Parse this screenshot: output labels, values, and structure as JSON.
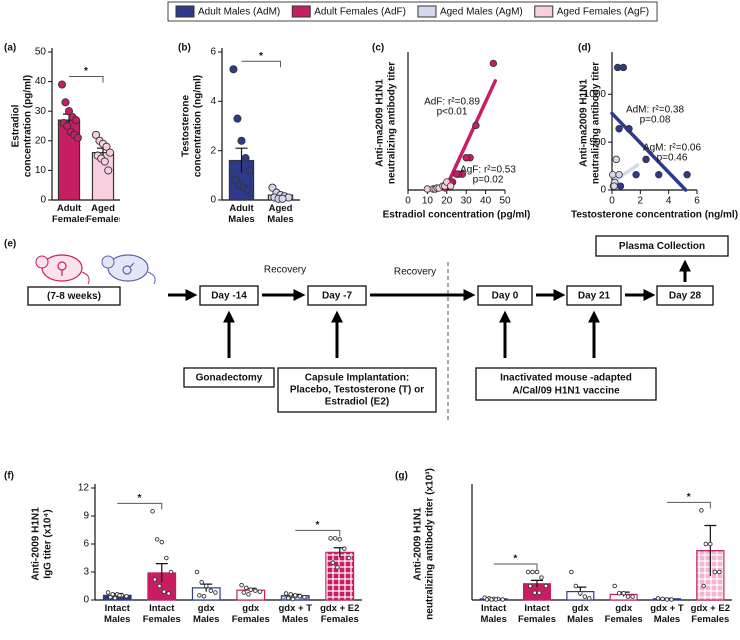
{
  "legend": [
    {
      "name": "Adult Males (AdM)",
      "color": "#2d3a8c"
    },
    {
      "name": "Adult Females (AdF)",
      "color": "#c71e63"
    },
    {
      "name": "Aged Males (AgM)",
      "color": "#d6d8f0"
    },
    {
      "name": "Aged Females (AgF)",
      "color": "#f9cfe0"
    }
  ],
  "chart_data": [
    {
      "type": "bar",
      "panel": "(a)",
      "ylabel": [
        "Estradiol",
        "concentration (pg/ml)"
      ],
      "categories": [
        "Adult Females",
        "Aged Females"
      ],
      "values": [
        27,
        16
      ],
      "errors": [
        2,
        1.5
      ],
      "colors": [
        "#c71e63",
        "#f9cfe0"
      ],
      "edgecolors": [
        "#333333",
        "#333333"
      ],
      "hatches": [
        null,
        null
      ],
      "point_colors": [
        "#c71e63",
        "#f9cfe0"
      ],
      "points": [
        [
          39,
          33,
          30,
          28,
          27,
          26,
          25,
          23,
          22,
          21
        ],
        [
          22,
          20,
          19,
          18,
          16,
          15,
          14,
          13,
          10
        ]
      ],
      "significance": [
        {
          "from": "Adult Females",
          "to": "Aged Females",
          "label": "*"
        }
      ],
      "ylim": [
        0,
        50
      ],
      "yticks": [
        0,
        10,
        20,
        30,
        40,
        50
      ]
    },
    {
      "type": "bar",
      "panel": "(b)",
      "ylabel": [
        "Testosterone",
        "concentration (ng/ml)"
      ],
      "categories": [
        "Adult Males",
        "Aged Males"
      ],
      "values": [
        1.6,
        0.2
      ],
      "errors": [
        0.5,
        0.05
      ],
      "colors": [
        "#2d3a8c",
        "#d6d8f0"
      ],
      "edgecolors": [
        "#333333",
        "#333333"
      ],
      "hatches": [
        null,
        null
      ],
      "point_colors": [
        "#2d3a8c",
        "#d6d8f0"
      ],
      "points": [
        [
          5.3,
          3.3,
          2.4,
          1.7,
          1.2,
          0.8,
          0.6,
          0.5,
          0.4
        ],
        [
          0.5,
          0.3,
          0.2,
          0.15,
          0.1,
          0.1,
          0.05,
          0.05
        ]
      ],
      "significance": [
        {
          "from": "Adult Males",
          "to": "Aged Males",
          "label": "*"
        }
      ],
      "ylim": [
        0,
        6
      ],
      "yticks": [
        0,
        2,
        4,
        6
      ]
    },
    {
      "type": "scatter",
      "panel": "(c)",
      "ylabel": [
        "Anti-ma2009 H1N1",
        "neutralizing antibody titer"
      ],
      "xlabel": "Estradiol concentration (pg/ml)",
      "series": [
        {
          "name": "AdF",
          "color": "#c71e63",
          "x": [
            44,
            35,
            32,
            30,
            28,
            26,
            25,
            23,
            22,
            21
          ],
          "y": [
            5100,
            2600,
            1300,
            1300,
            640,
            640,
            640,
            320,
            320,
            160
          ]
        },
        {
          "name": "AgF",
          "color": "#f9cfe0",
          "x": [
            10,
            13,
            14,
            15,
            16,
            18,
            19,
            20,
            22
          ],
          "y": [
            40,
            40,
            40,
            80,
            80,
            160,
            160,
            320,
            160
          ]
        }
      ],
      "fits": [
        {
          "color": "#c71e63",
          "x": [
            19,
            45
          ],
          "y": [
            0,
            4400
          ]
        },
        {
          "color": "#f9cfe0",
          "x": [
            9,
            23
          ],
          "y": [
            0,
            260
          ]
        }
      ],
      "annotations": [
        [
          "AdF: r²=0.89",
          "p<0.01"
        ],
        [
          "AgF: r²=0.53",
          "p=0.02"
        ]
      ],
      "xlim": [
        0,
        50
      ],
      "xticks": [
        0,
        10,
        20,
        30,
        40,
        50
      ],
      "ylim": [
        0,
        5400
      ]
    },
    {
      "type": "scatter",
      "panel": "(d)",
      "ylabel": [
        "Anti-ma2009 H1N1",
        "neutralizing antibody titer"
      ],
      "xlabel": "Testosterone concentration (ng/ml)",
      "series": [
        {
          "name": "AdM",
          "color": "#2d3a8c",
          "x": [
            0.4,
            0.8,
            0.5,
            1.2,
            2.4,
            1.7,
            3.3,
            5.3,
            0.6
          ],
          "y": [
            1280,
            1280,
            640,
            640,
            320,
            160,
            160,
            160,
            40
          ]
        },
        {
          "name": "AgM",
          "color": "#d6d8f0",
          "x": [
            0.1,
            0.2,
            0.3,
            0.05,
            0.15,
            0.5
          ],
          "y": [
            40,
            80,
            320,
            160,
            40,
            160
          ]
        }
      ],
      "fits": [
        {
          "color": "#2d3a8c",
          "x": [
            0,
            5.2
          ],
          "y": [
            800,
            0
          ]
        },
        {
          "color": "#d6d8f0",
          "x": [
            0,
            1.8
          ],
          "y": [
            80,
            260
          ]
        }
      ],
      "annotations": [
        [
          "AdM: r²=0.38",
          "p=0.08"
        ],
        [
          "AgM: r²=0.06",
          "p=0.46"
        ]
      ],
      "xlim": [
        0,
        6
      ],
      "xticks": [
        0,
        2,
        4,
        6
      ],
      "ylim": [
        0,
        1400
      ],
      "yticks": [
        0,
        500,
        1000
      ]
    },
    {
      "type": "bar",
      "panel": "(f)",
      "ylabel": [
        "Anti-2009 H1N1",
        "IgG titer (x10⁴)"
      ],
      "categories": [
        "Intact Males",
        "Intact Females",
        "gdx Males",
        "gdx Females",
        "gdx + T Males",
        "gdx + E2 Females"
      ],
      "values": [
        0.5,
        2.9,
        1.3,
        1.05,
        0.45,
        5.1
      ],
      "errors": [
        0.2,
        1.0,
        0.4,
        0.2,
        0.15,
        0.5
      ],
      "colors": [
        "#2d3a8c",
        "#c71e63",
        "#ffffff",
        "#ffffff",
        "#d6d8f0",
        "#c71e63"
      ],
      "edgecolors": [
        "#2d3a8c",
        "#c71e63",
        "#2d3a8c",
        "#c71e63",
        "#2d3a8c",
        "#c71e63"
      ],
      "hatches": [
        null,
        null,
        null,
        null,
        "stripes",
        "grid"
      ],
      "point_colors": [
        "#ffffff",
        "#ffffff",
        "#ffffff",
        "#ffffff",
        "#ffffff",
        "#ffffff"
      ],
      "points": [
        [
          0.8,
          0.6,
          0.6,
          0.5,
          0.4,
          0.3,
          0.2,
          0.5
        ],
        [
          9.5,
          6.5,
          6.2,
          4.5,
          3,
          2.2,
          1.5,
          0.9,
          0.7
        ],
        [
          3,
          1.9,
          1.5,
          1,
          0.8,
          0.5,
          0.4
        ],
        [
          1.6,
          1.3,
          1.1,
          1,
          0.9,
          0.8,
          0.6
        ],
        [
          0.7,
          0.6,
          0.5,
          0.4,
          0.3,
          0.2,
          0.1
        ],
        [
          6.6,
          6.6,
          6.5,
          5.5,
          4.5,
          4,
          3.5
        ]
      ],
      "significance": [
        {
          "from": "Intact Males",
          "to": "Intact Females",
          "label": "*"
        },
        {
          "from": "gdx + T Males",
          "to": "gdx + E2 Females",
          "label": "*"
        }
      ],
      "ylim": [
        0,
        12
      ],
      "yticks": [
        0,
        3,
        6,
        9,
        12
      ]
    },
    {
      "type": "bar",
      "panel": "(g)",
      "ylabel": [
        "Anti-2009 H1N1",
        "neutralizing antibody titer (x10³)"
      ],
      "categories": [
        "Intact Males",
        "Intact Females",
        "gdx Males",
        "gdx Females",
        "gdx + T Males",
        "gdx + E2 Females"
      ],
      "values": [
        0.2,
        2.9,
        1.5,
        1.0,
        0.2,
        8.8
      ],
      "errors": [
        0.1,
        0.6,
        0.8,
        0.4,
        0.1,
        4.5
      ],
      "colors": [
        "#d6d8f0",
        "#c71e63",
        "#ffffff",
        "#ffffff",
        "#d6d8f0",
        "#f4b6cf"
      ],
      "edgecolors": [
        "#2d3a8c",
        "#c71e63",
        "#2d3a8c",
        "#c71e63",
        "#2d3a8c",
        "#c71e63"
      ],
      "hatches": [
        null,
        null,
        null,
        null,
        "stripes",
        "grid"
      ],
      "point_colors": [
        "#ffffff",
        "#ffffff",
        "#ffffff",
        "#ffffff",
        "#ffffff",
        "#ffffff"
      ],
      "points": [
        [
          0.4,
          0.3,
          0.2,
          0.2,
          0.1,
          0.1,
          0.1,
          0.1
        ],
        [
          5,
          5,
          5,
          4,
          2.5,
          2.5,
          1.3,
          1.3
        ],
        [
          5,
          2.5,
          1.2,
          0.6,
          0.3
        ],
        [
          2.5,
          1.2,
          1.2,
          0.6,
          0.6
        ],
        [
          0.3,
          0.2,
          0.1,
          0.1
        ],
        [
          16,
          10,
          10,
          5,
          5,
          2.5
        ]
      ],
      "significance": [
        {
          "from": "Intact Males",
          "to": "Intact Females",
          "label": "*"
        },
        {
          "from": "gdx + T Males",
          "to": "gdx + E2 Females",
          "label": "*"
        }
      ],
      "ylim": [
        0,
        20
      ]
    }
  ],
  "diagram": {
    "panel": "(e)",
    "age": "(7-8 weeks)",
    "days": [
      "Day -14",
      "Day -7",
      "Day 0",
      "Day 21",
      "Day 28"
    ],
    "recovery": [
      "Recovery",
      "Recovery"
    ],
    "collection": "Plasma Collection",
    "gonadectomy": "Gonadectomy",
    "capsule": [
      "Capsule Implantation:",
      "Placebo, Testosterone (T) or",
      "Estradiol (E2)"
    ],
    "vaccine": [
      "Inactivated mouse -adapted",
      "A/Cal/09 H1N1 vaccine"
    ]
  }
}
